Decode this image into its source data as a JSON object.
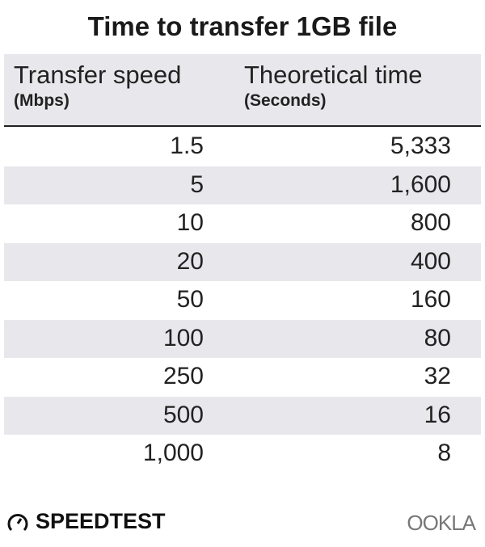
{
  "title": "Time to transfer 1GB file",
  "chart_data": {
    "type": "table",
    "title": "Time to transfer 1GB file",
    "columns": [
      {
        "label": "Transfer speed",
        "unit": "(Mbps)"
      },
      {
        "label": "Theoretical time",
        "unit": "(Seconds)"
      }
    ],
    "rows": [
      [
        "1.5",
        "5,333"
      ],
      [
        "5",
        "1,600"
      ],
      [
        "10",
        "800"
      ],
      [
        "20",
        "400"
      ],
      [
        "50",
        "160"
      ],
      [
        "100",
        "80"
      ],
      [
        "250",
        "32"
      ],
      [
        "500",
        "16"
      ],
      [
        "1,000",
        "8"
      ]
    ]
  },
  "branding": {
    "left": "SPEEDTEST",
    "right": "OOKLA"
  },
  "colors": {
    "stripe": "#e8e8ec",
    "text": "#222222"
  }
}
